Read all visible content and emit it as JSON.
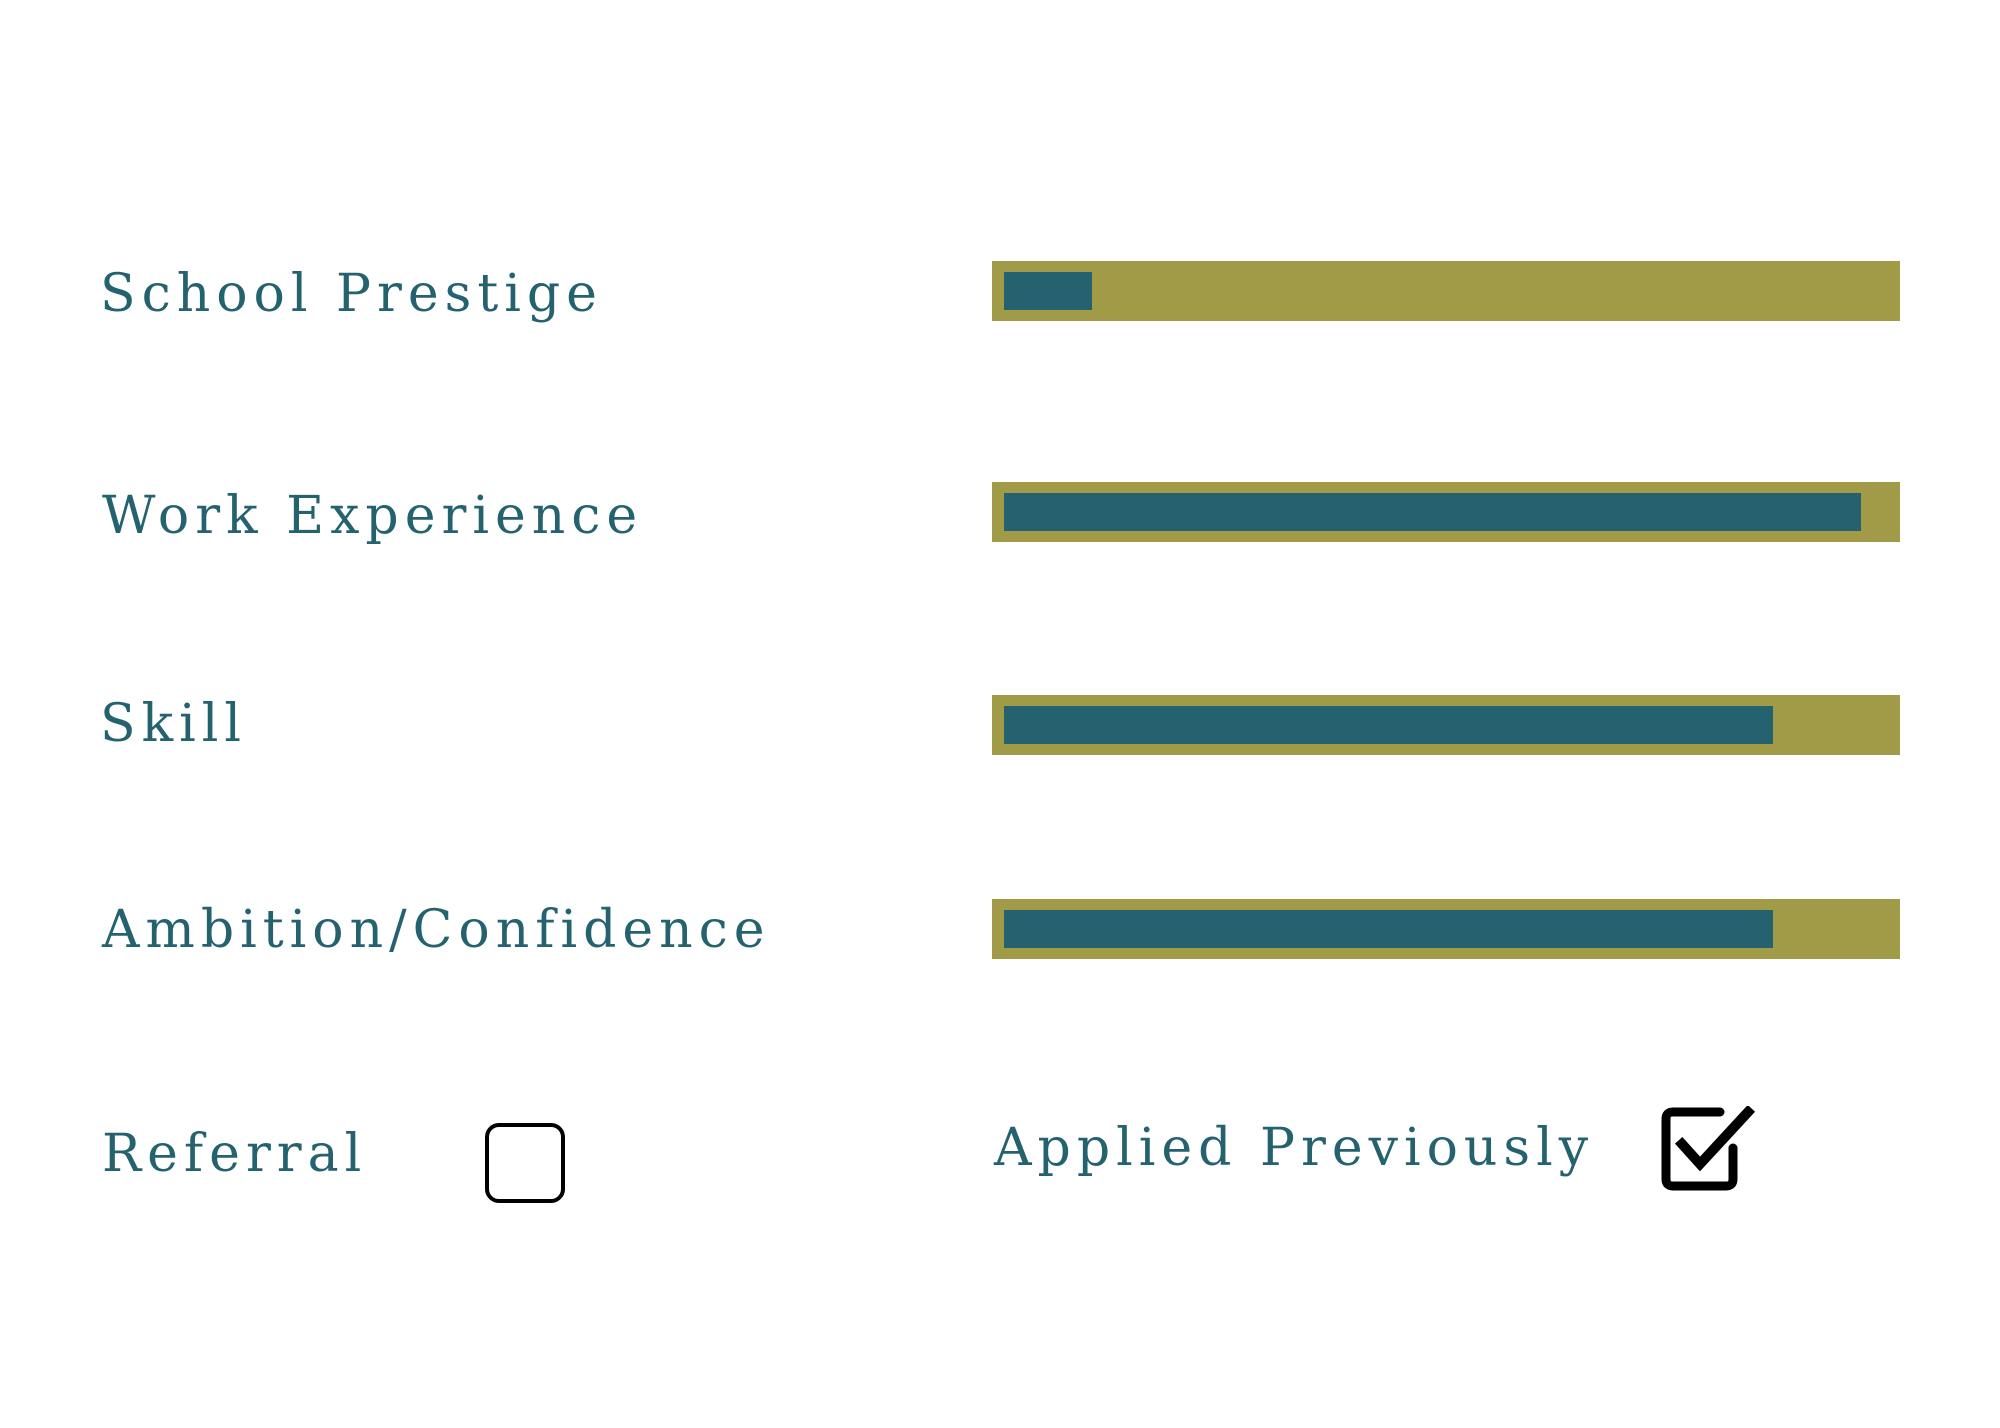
{
  "colors": {
    "text": "#23626e",
    "bar_track": "#a19b47",
    "bar_fill": "#23626e",
    "checkbox_stroke": "#000000"
  },
  "ratings": [
    {
      "label": "School Prestige",
      "fill_fraction": 0.1
    },
    {
      "label": "Work Experience",
      "fill_fraction": 0.97
    },
    {
      "label": "Skill",
      "fill_fraction": 0.87
    },
    {
      "label": "Ambition/Confidence",
      "fill_fraction": 0.87
    }
  ],
  "checks": {
    "referral": {
      "label": "Referral",
      "checked": false,
      "icon": "empty-checkbox-icon"
    },
    "applied_previously": {
      "label": "Applied Previously",
      "checked": true,
      "icon": "checked-checkbox-icon"
    }
  }
}
